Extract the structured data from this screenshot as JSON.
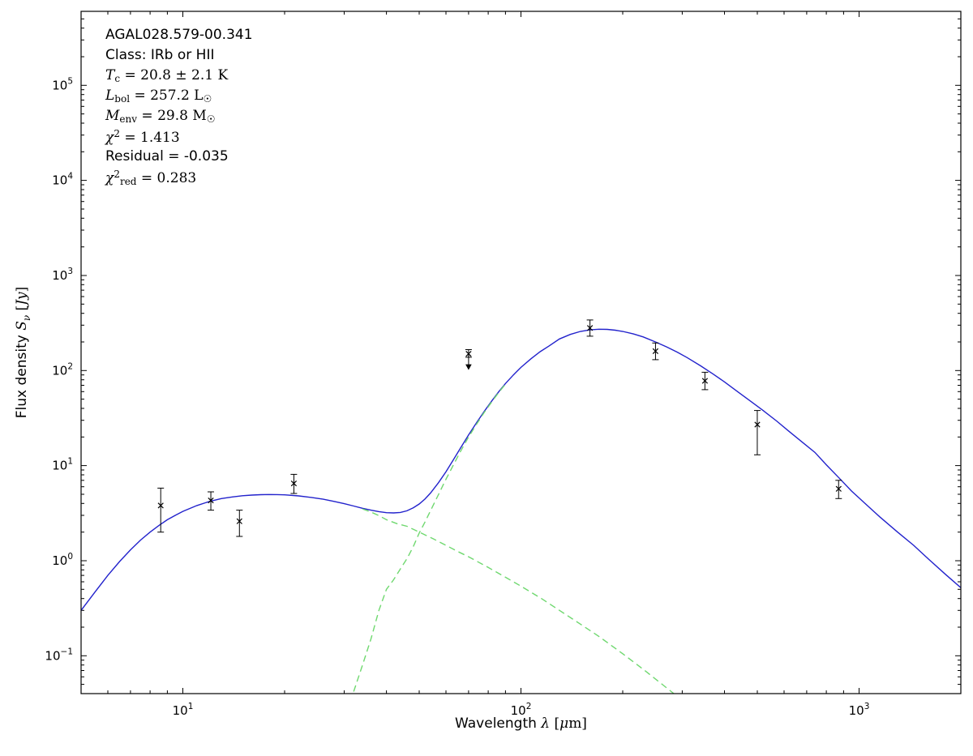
{
  "figure": {
    "background": "#ffffff"
  },
  "annotation": {
    "lines": [
      {
        "parts": [
          {
            "t": "AGAL028.579-00.341",
            "s": "plain"
          }
        ]
      },
      {
        "parts": [
          {
            "t": "Class: IRb or HII",
            "s": "plain"
          }
        ]
      },
      {
        "parts": [
          {
            "t": "T",
            "s": "var"
          },
          {
            "t": "c",
            "s": "sub"
          },
          {
            "t": " = 20.8 ± 2.1 K",
            "s": "math"
          }
        ]
      },
      {
        "parts": [
          {
            "t": "L",
            "s": "var"
          },
          {
            "t": "bol",
            "s": "sub"
          },
          {
            "t": " = 257.2 L",
            "s": "math"
          },
          {
            "t": "☉",
            "s": "sub"
          }
        ]
      },
      {
        "parts": [
          {
            "t": "M",
            "s": "var"
          },
          {
            "t": "env",
            "s": "sub"
          },
          {
            "t": " = 29.8 M",
            "s": "math"
          },
          {
            "t": "☉",
            "s": "sub"
          }
        ]
      },
      {
        "parts": [
          {
            "t": "χ",
            "s": "var"
          },
          {
            "t": "2",
            "s": "sup"
          },
          {
            "t": " = 1.413",
            "s": "math"
          }
        ]
      },
      {
        "parts": [
          {
            "t": "Residual = -0.035",
            "s": "plain"
          }
        ]
      },
      {
        "parts": [
          {
            "t": "χ",
            "s": "var"
          },
          {
            "t": "2",
            "s": "sup"
          },
          {
            "t": "red",
            "s": "sub"
          },
          {
            "t": " = 0.283",
            "s": "math"
          }
        ]
      }
    ]
  },
  "chart_data": {
    "type": "line",
    "title": "",
    "xscale": "log",
    "yscale": "log",
    "xlim": [
      5,
      2000
    ],
    "ylim": [
      0.04,
      600000
    ],
    "x_major_ticks": [
      10,
      100,
      1000
    ],
    "y_major_ticks": [
      0.1,
      1,
      10,
      100,
      1000,
      10000,
      100000
    ],
    "xlabel_parts": [
      {
        "t": "Wavelength ",
        "s": "plain"
      },
      {
        "t": "λ",
        "s": "var"
      },
      {
        "t": " [",
        "s": "math"
      },
      {
        "t": "μ",
        "s": "var"
      },
      {
        "t": "m]",
        "s": "math"
      }
    ],
    "ylabel_parts": [
      {
        "t": "Flux density ",
        "s": "plain"
      },
      {
        "t": "S",
        "s": "var"
      },
      {
        "t": "ν",
        "s": "subvar"
      },
      {
        "t": " [",
        "s": "math"
      },
      {
        "t": "Jy",
        "s": "var"
      },
      {
        "t": "]",
        "s": "math"
      }
    ],
    "colors": {
      "model_total": "#2222cc",
      "model_component": "#6fd86f",
      "data_points": "#000000",
      "frame": "#000000"
    },
    "series": [
      {
        "name": "model-total",
        "color_key": "model_total",
        "style": "solid",
        "points": [
          [
            5,
            0.3
          ],
          [
            5.5,
            0.47
          ],
          [
            6,
            0.7
          ],
          [
            6.5,
            0.98
          ],
          [
            7,
            1.3
          ],
          [
            7.5,
            1.65
          ],
          [
            8,
            2.0
          ],
          [
            8.5,
            2.35
          ],
          [
            9,
            2.7
          ],
          [
            9.5,
            3.0
          ],
          [
            10,
            3.3
          ],
          [
            11,
            3.8
          ],
          [
            12,
            4.2
          ],
          [
            13,
            4.5
          ],
          [
            14,
            4.68
          ],
          [
            15,
            4.82
          ],
          [
            16,
            4.9
          ],
          [
            17,
            4.95
          ],
          [
            18,
            4.97
          ],
          [
            19,
            4.96
          ],
          [
            20,
            4.93
          ],
          [
            22,
            4.8
          ],
          [
            24,
            4.63
          ],
          [
            26,
            4.43
          ],
          [
            28,
            4.2
          ],
          [
            30,
            3.98
          ],
          [
            32,
            3.76
          ],
          [
            34,
            3.56
          ],
          [
            36,
            3.4
          ],
          [
            38,
            3.28
          ],
          [
            40,
            3.2
          ],
          [
            42,
            3.18
          ],
          [
            44,
            3.22
          ],
          [
            46,
            3.35
          ],
          [
            48,
            3.6
          ],
          [
            50,
            3.95
          ],
          [
            52,
            4.45
          ],
          [
            54,
            5.15
          ],
          [
            57,
            6.6
          ],
          [
            60,
            8.6
          ],
          [
            63,
            11.4
          ],
          [
            66,
            15
          ],
          [
            70,
            21
          ],
          [
            74,
            28.5
          ],
          [
            78,
            37.5
          ],
          [
            82,
            48
          ],
          [
            86,
            60
          ],
          [
            90,
            73
          ],
          [
            95,
            90
          ],
          [
            100,
            108
          ],
          [
            107,
            133
          ],
          [
            114,
            158
          ],
          [
            121,
            181
          ],
          [
            130,
            215
          ],
          [
            140,
            240
          ],
          [
            150,
            258
          ],
          [
            160,
            268
          ],
          [
            170,
            272
          ],
          [
            180,
            271
          ],
          [
            190,
            266
          ],
          [
            200,
            258
          ],
          [
            215,
            243
          ],
          [
            230,
            226
          ],
          [
            250,
            200
          ],
          [
            270,
            177
          ],
          [
            290,
            156
          ],
          [
            310,
            137
          ],
          [
            340,
            112
          ],
          [
            370,
            92
          ],
          [
            400,
            76
          ],
          [
            440,
            59
          ],
          [
            480,
            47
          ],
          [
            520,
            38
          ],
          [
            570,
            29.5
          ],
          [
            620,
            23
          ],
          [
            680,
            17.6
          ],
          [
            740,
            13.8
          ],
          [
            800,
            10.2
          ],
          [
            870,
            7.5
          ],
          [
            950,
            5.4
          ],
          [
            1050,
            3.9
          ],
          [
            1150,
            2.9
          ],
          [
            1300,
            2.0
          ],
          [
            1450,
            1.45
          ],
          [
            1600,
            1.05
          ],
          [
            1800,
            0.72
          ],
          [
            2000,
            0.52
          ]
        ]
      },
      {
        "name": "component-cold-envelope",
        "color_key": "model_component",
        "style": "dashed",
        "points": [
          [
            32,
            0.042
          ],
          [
            34,
            0.08
          ],
          [
            36,
            0.15
          ],
          [
            38,
            0.3
          ],
          [
            40,
            0.5
          ],
          [
            42,
            0.63
          ],
          [
            44,
            0.82
          ],
          [
            46,
            1.05
          ],
          [
            48,
            1.4
          ],
          [
            50,
            1.95
          ],
          [
            52,
            2.55
          ],
          [
            54,
            3.35
          ],
          [
            57,
            4.95
          ],
          [
            60,
            7.2
          ],
          [
            63,
            10.0
          ],
          [
            66,
            13.8
          ],
          [
            70,
            20.0
          ],
          [
            74,
            27.5
          ],
          [
            78,
            36.6
          ],
          [
            82,
            47
          ],
          [
            86,
            59
          ],
          [
            90,
            72
          ]
        ]
      },
      {
        "name": "component-warm",
        "color_key": "model_component",
        "style": "dashed",
        "points": [
          [
            34,
            3.5
          ],
          [
            36,
            3.25
          ],
          [
            38,
            2.98
          ],
          [
            40,
            2.7
          ],
          [
            43,
            2.45
          ],
          [
            46,
            2.3
          ],
          [
            50,
            2.0
          ],
          [
            55,
            1.7
          ],
          [
            60,
            1.45
          ],
          [
            65,
            1.25
          ],
          [
            70,
            1.1
          ],
          [
            80,
            0.85
          ],
          [
            90,
            0.67
          ],
          [
            100,
            0.54
          ],
          [
            115,
            0.4
          ],
          [
            130,
            0.3
          ],
          [
            150,
            0.215
          ],
          [
            170,
            0.16
          ],
          [
            200,
            0.105
          ],
          [
            230,
            0.072
          ],
          [
            260,
            0.051
          ],
          [
            300,
            0.034
          ]
        ]
      }
    ],
    "data_points": [
      {
        "wavelength": 8.6,
        "flux": 3.8,
        "err_plus": 2.0,
        "err_minus": 1.8,
        "upper_limit": false
      },
      {
        "wavelength": 12.1,
        "flux": 4.3,
        "err_plus": 1.0,
        "err_minus": 0.9,
        "upper_limit": false
      },
      {
        "wavelength": 14.7,
        "flux": 2.6,
        "err_plus": 0.8,
        "err_minus": 0.8,
        "upper_limit": false
      },
      {
        "wavelength": 21.3,
        "flux": 6.5,
        "err_plus": 1.6,
        "err_minus": 1.4,
        "upper_limit": false
      },
      {
        "wavelength": 70,
        "flux": 150,
        "err_plus": 16,
        "err_minus": 12,
        "upper_limit": true
      },
      {
        "wavelength": 160,
        "flux": 280,
        "err_plus": 60,
        "err_minus": 50,
        "upper_limit": false
      },
      {
        "wavelength": 250,
        "flux": 160,
        "err_plus": 35,
        "err_minus": 30,
        "upper_limit": false
      },
      {
        "wavelength": 350,
        "flux": 78,
        "err_plus": 18,
        "err_minus": 15,
        "upper_limit": false
      },
      {
        "wavelength": 500,
        "flux": 27,
        "err_plus": 11,
        "err_minus": 14,
        "upper_limit": false
      },
      {
        "wavelength": 870,
        "flux": 5.7,
        "err_plus": 1.3,
        "err_minus": 1.2,
        "upper_limit": false
      }
    ]
  }
}
